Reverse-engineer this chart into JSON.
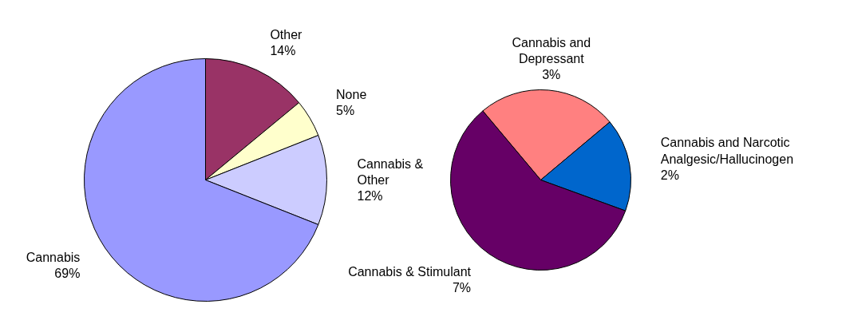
{
  "chart_data": [
    {
      "type": "pie",
      "categories": [
        "Other",
        "None",
        "Cannabis & Other",
        "Cannabis"
      ],
      "values": [
        14,
        5,
        12,
        69
      ],
      "colors": [
        "#993366",
        "#ffffcc",
        "#ccccff",
        "#9999ff"
      ],
      "value_labels": [
        "14%",
        "5%",
        "12%",
        "69%"
      ]
    },
    {
      "type": "pie",
      "categories": [
        "Cannabis and Depressant",
        "Cannabis and Narcotic Analgesic/Hallucinogen",
        "Cannabis & Stimulant"
      ],
      "values": [
        3,
        2,
        7
      ],
      "colors": [
        "#ff8080",
        "#0066cc",
        "#660066"
      ],
      "value_labels": [
        "3%",
        "2%",
        "7%"
      ]
    }
  ]
}
